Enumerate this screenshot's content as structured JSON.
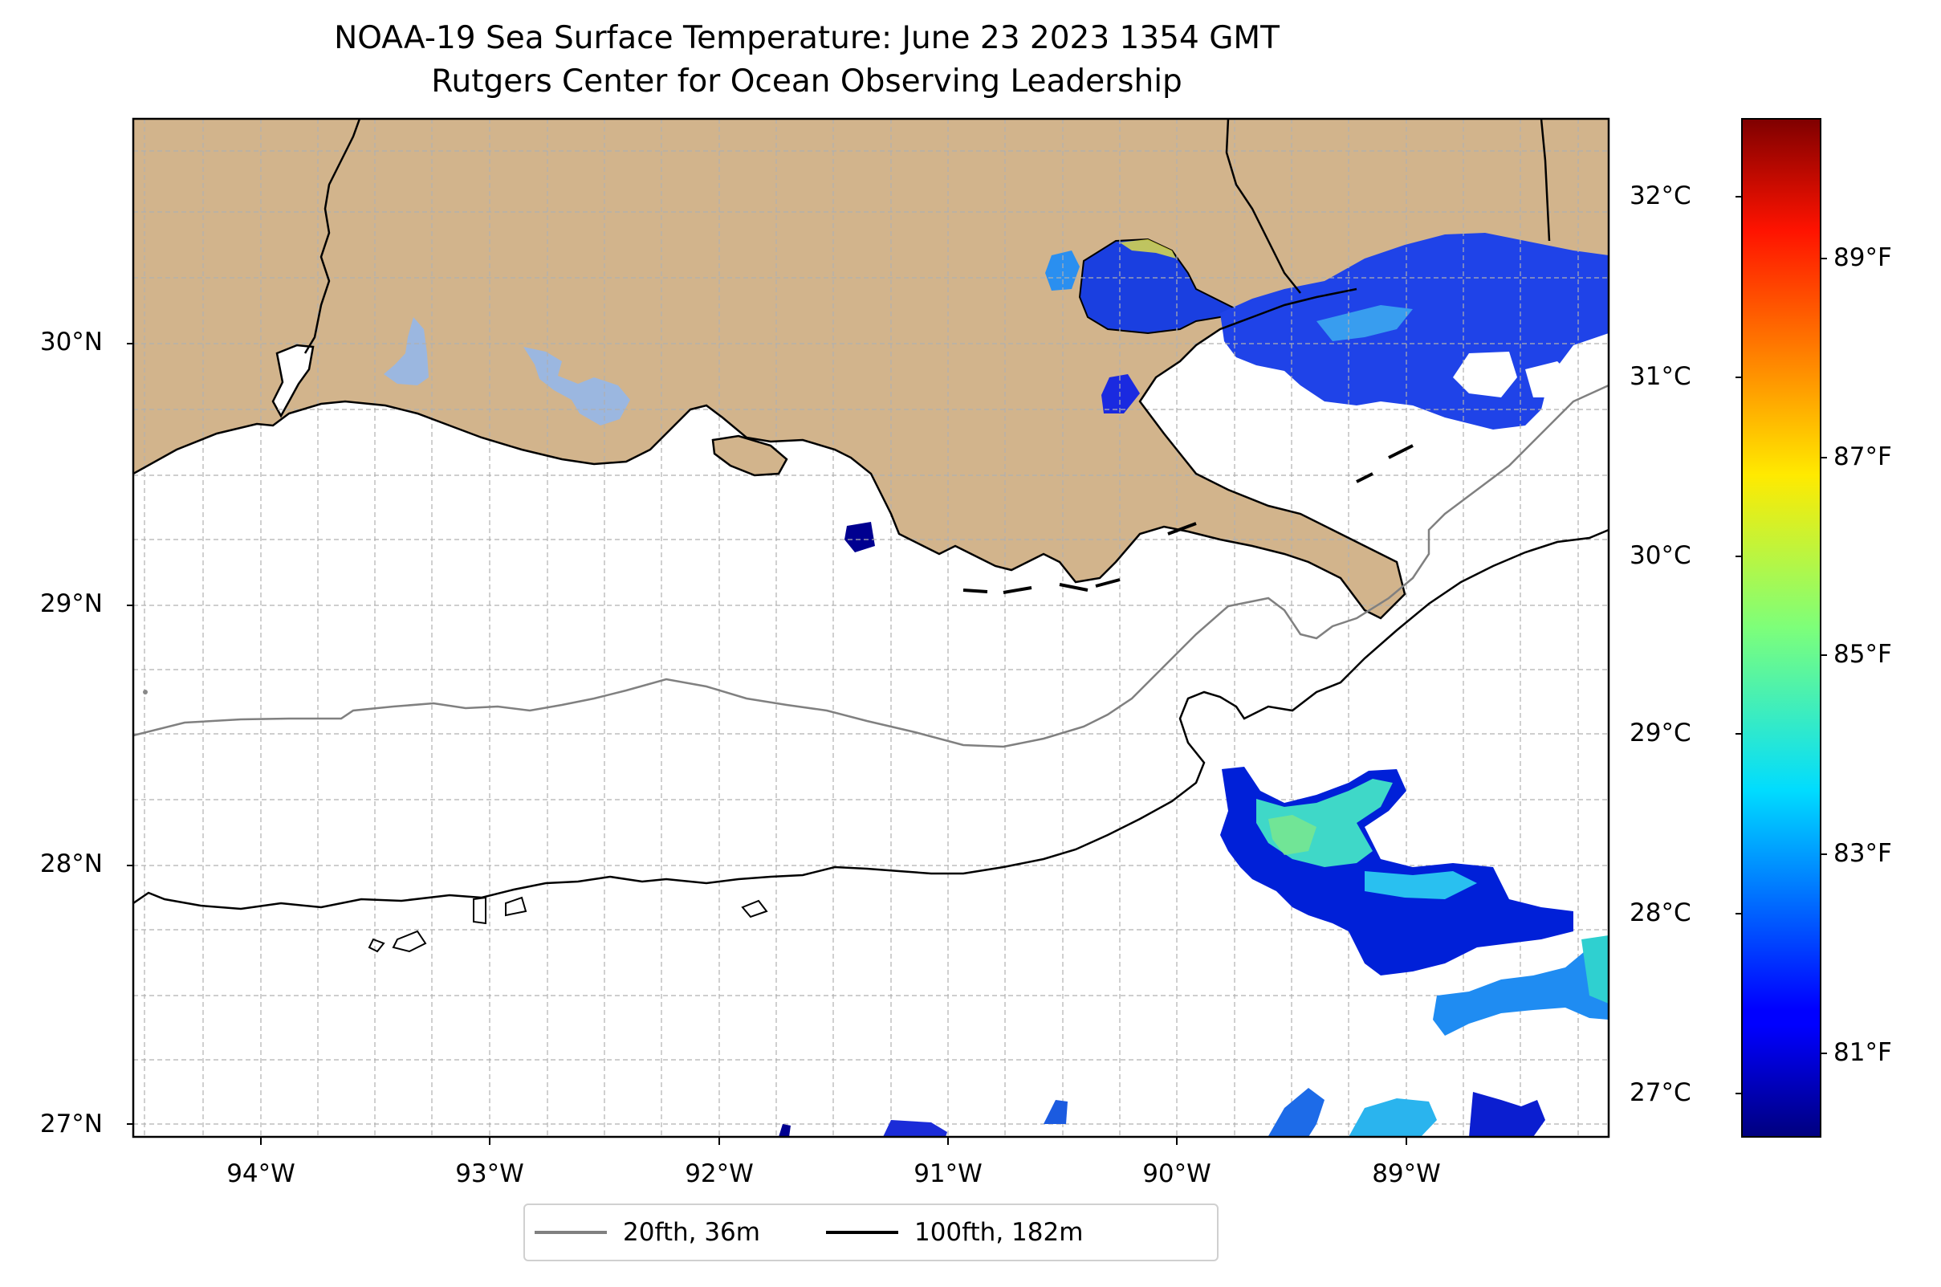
{
  "title": "NOAA-19 Sea Surface Temperature: June 23 2023 1354 GMT",
  "subtitle": "Rutgers Center for Ocean Observing Leadership",
  "colors": {
    "land": "#d2b48c",
    "water_inland": "#9bb7e0",
    "ocean": "#ffffff",
    "isobath_20fth": "#808080",
    "isobath_100fth": "#000000",
    "grid": "#b0b0b0",
    "colormap": "jet"
  },
  "latitude_labels": [
    "30°N",
    "29°N",
    "28°N",
    "27°N"
  ],
  "longitude_labels": [
    "94°W",
    "93°W",
    "92°W",
    "91°W",
    "90°W",
    "89°W"
  ],
  "colorbar": {
    "celsius_labels": [
      "32°C",
      "31°C",
      "30°C",
      "29°C",
      "28°C",
      "27°C"
    ],
    "fahrenheit_labels": [
      "89°F",
      "87°F",
      "85°F",
      "83°F",
      "81°F"
    ]
  },
  "legend": [
    {
      "label": "20fth, 36m",
      "color": "#808080"
    },
    {
      "label": "100fth, 182m",
      "color": "#000000"
    }
  ],
  "map": {
    "extent_lon": [
      -94.55,
      -88.2
    ],
    "extent_lat": [
      26.93,
      30.84
    ],
    "gridlines": true,
    "features": [
      "coastline",
      "land",
      "isobath_20fth",
      "isobath_100fth",
      "sst_pixels"
    ]
  }
}
